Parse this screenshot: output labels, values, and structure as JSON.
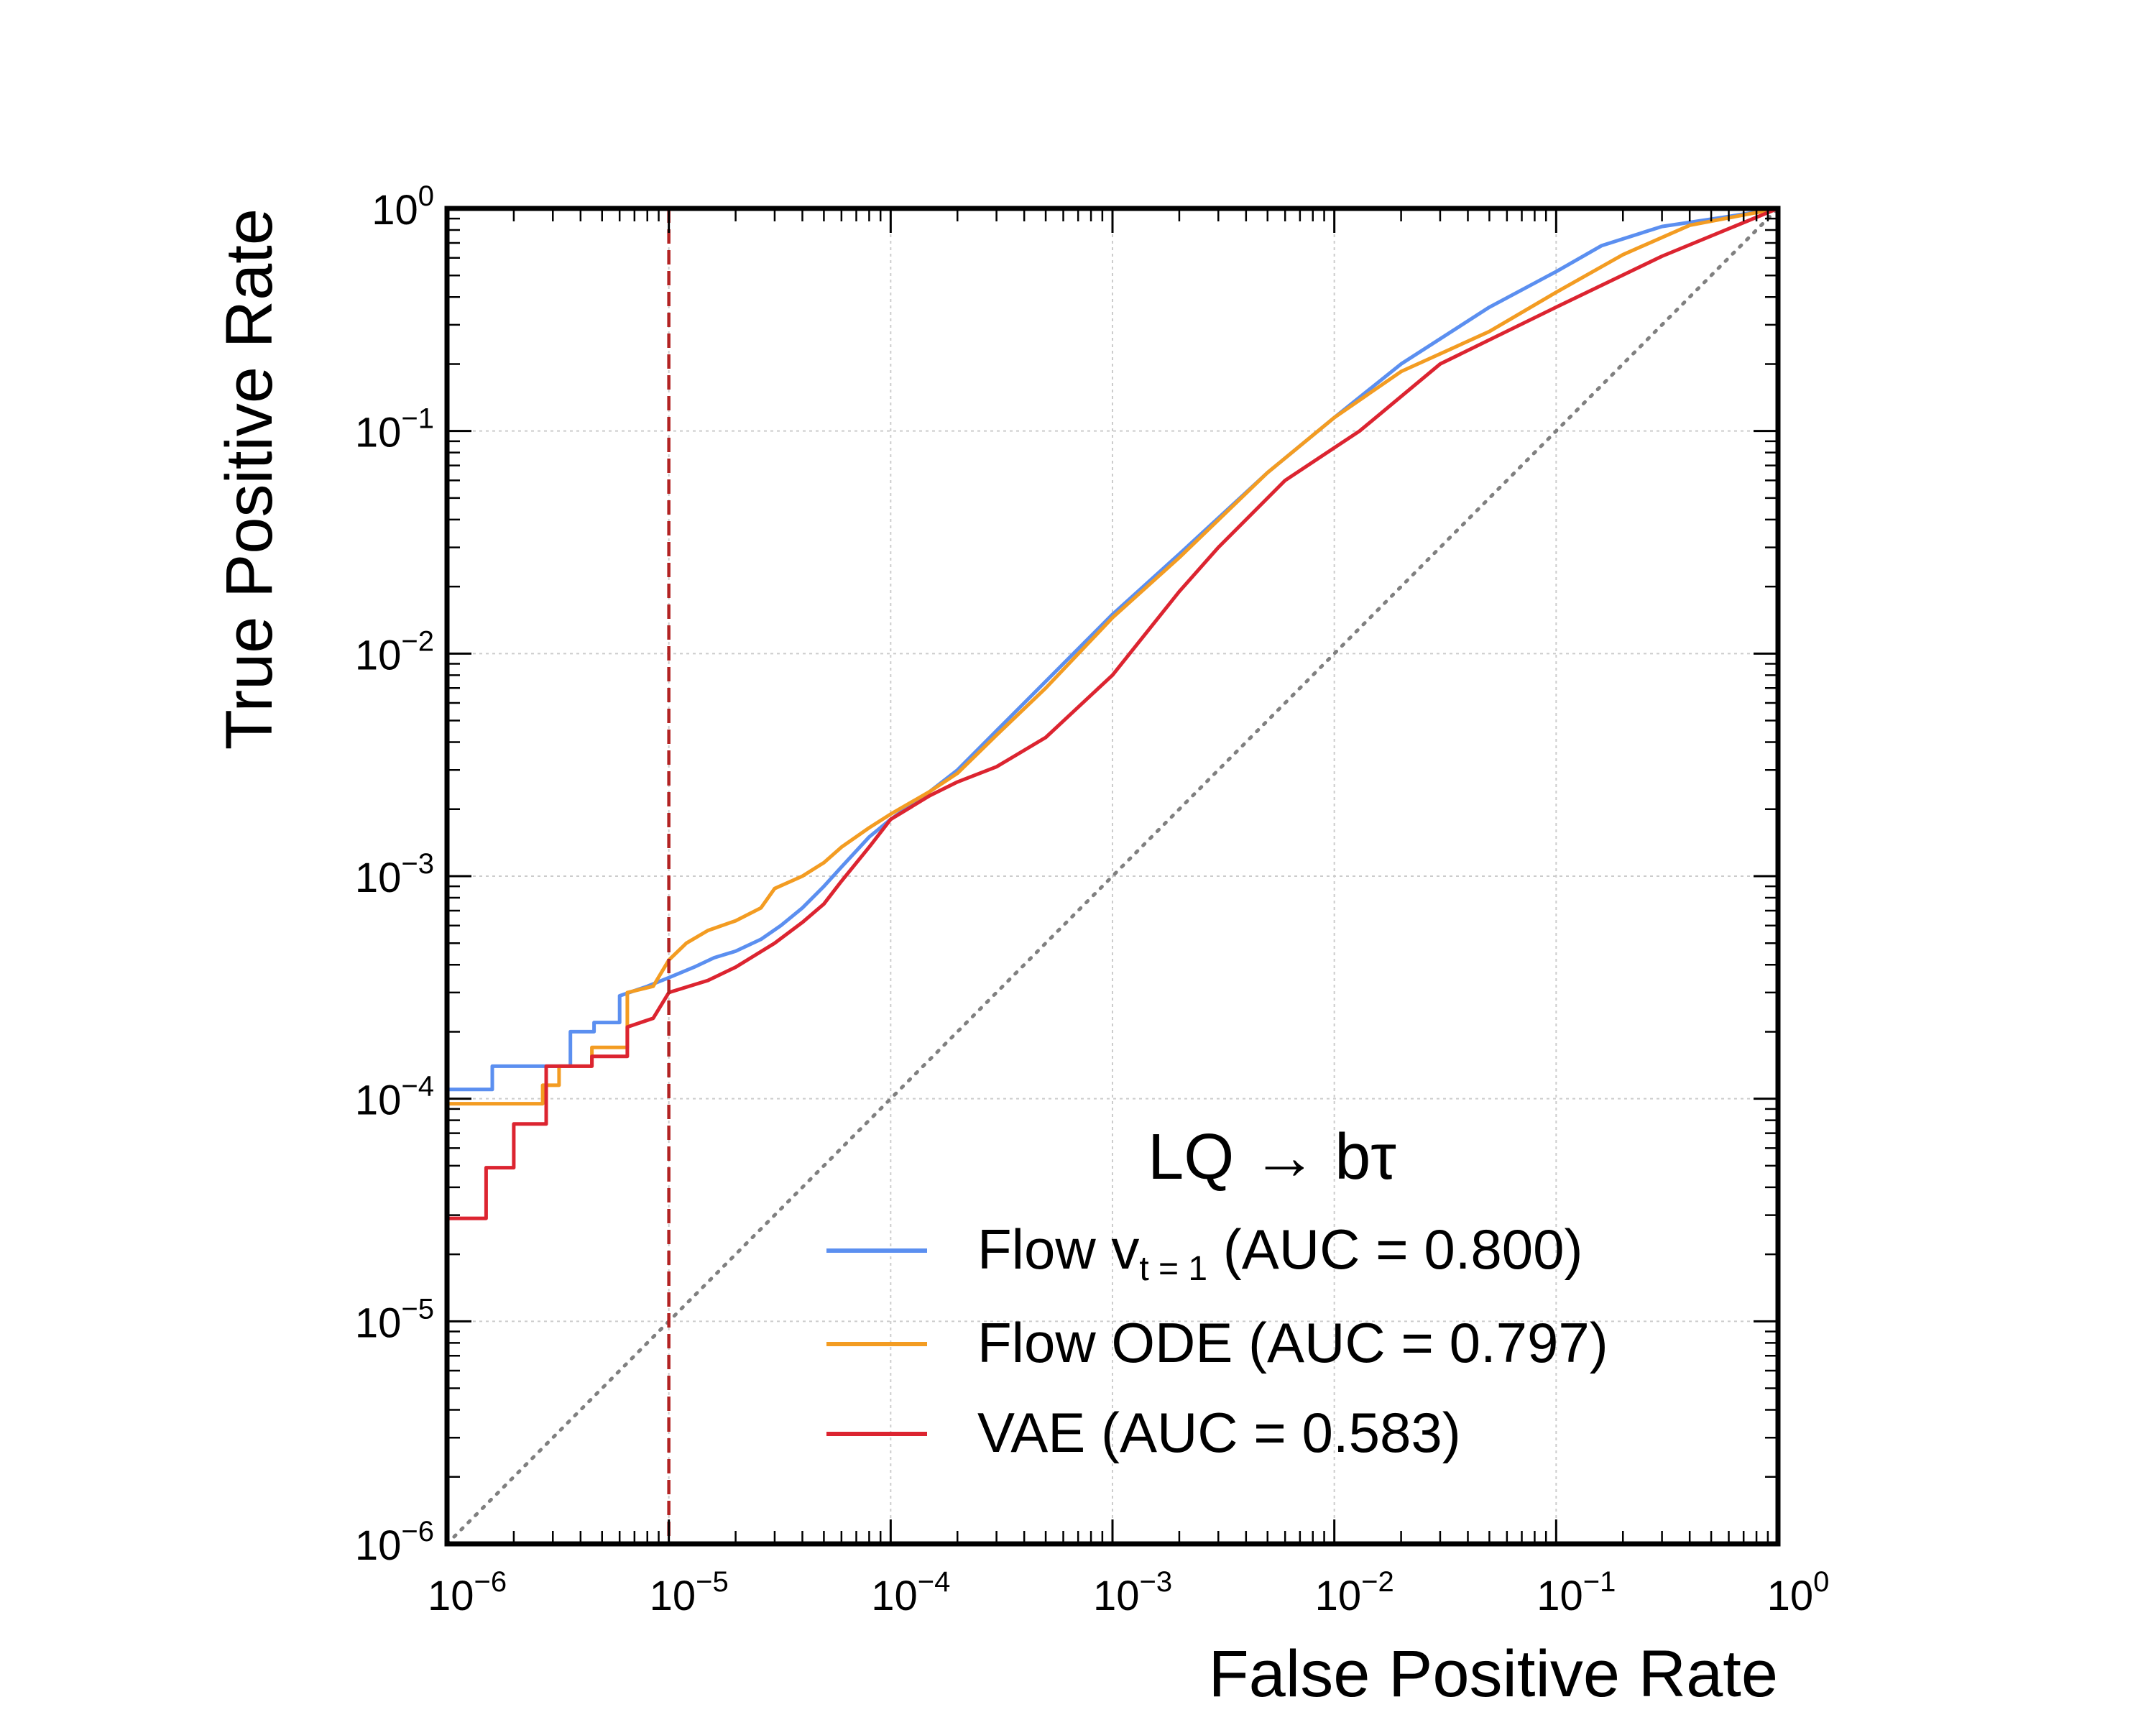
{
  "chart_data": {
    "type": "line",
    "xscale": "log",
    "yscale": "log",
    "xlabel": "False Positive Rate",
    "ylabel": "True Positive Rate",
    "xlim": [
      1e-06,
      1
    ],
    "ylim": [
      1e-06,
      1
    ],
    "grid": true,
    "x_ticks": [
      {
        "base": "10",
        "exp": "−6"
      },
      {
        "base": "10",
        "exp": "−5"
      },
      {
        "base": "10",
        "exp": "−4"
      },
      {
        "base": "10",
        "exp": "−3"
      },
      {
        "base": "10",
        "exp": "−2"
      },
      {
        "base": "10",
        "exp": "−1"
      },
      {
        "base": "10",
        "exp": "0"
      }
    ],
    "y_ticks": [
      {
        "base": "10",
        "exp": "−6"
      },
      {
        "base": "10",
        "exp": "−5"
      },
      {
        "base": "10",
        "exp": "−4"
      },
      {
        "base": "10",
        "exp": "−3"
      },
      {
        "base": "10",
        "exp": "−2"
      },
      {
        "base": "10",
        "exp": "−1"
      },
      {
        "base": "10",
        "exp": "0"
      }
    ],
    "legend_title": "LQ → bτ",
    "legend_placement": "lower-right",
    "reference_line": {
      "x": 1e-05,
      "color": "#b22222",
      "style": "dashed"
    },
    "diagonal": {
      "color": "#808080",
      "style": "dotted"
    },
    "series": [
      {
        "name": "Flow v",
        "name_sub": "t = 1",
        "name_suffix": " (AUC = 0.800)",
        "color": "#5b8ff0",
        "points": [
          [
            1e-06,
            0.00011
          ],
          [
            1.6e-06,
            0.00011
          ],
          [
            1.6e-06,
            0.00014
          ],
          [
            2.6e-06,
            0.00014
          ],
          [
            2.6e-06,
            0.00014
          ],
          [
            3.6e-06,
            0.00014
          ],
          [
            3.6e-06,
            0.0002
          ],
          [
            4.6e-06,
            0.0002
          ],
          [
            4.6e-06,
            0.00022
          ],
          [
            6e-06,
            0.00022
          ],
          [
            6e-06,
            0.00029
          ],
          [
            8e-06,
            0.00032
          ],
          [
            1e-05,
            0.00035
          ],
          [
            1.3e-05,
            0.00039
          ],
          [
            1.6e-05,
            0.00043
          ],
          [
            2e-05,
            0.00046
          ],
          [
            2.6e-05,
            0.00052
          ],
          [
            3.2e-05,
            0.0006
          ],
          [
            4e-05,
            0.00072
          ],
          [
            5e-05,
            0.0009
          ],
          [
            6e-05,
            0.0011
          ],
          [
            8e-05,
            0.0015
          ],
          [
            0.0001,
            0.0018
          ],
          [
            0.00015,
            0.0024
          ],
          [
            0.0002,
            0.003
          ],
          [
            0.0003,
            0.0045
          ],
          [
            0.0005,
            0.0075
          ],
          [
            0.001,
            0.015
          ],
          [
            0.002,
            0.028
          ],
          [
            0.005,
            0.065
          ],
          [
            0.01,
            0.115
          ],
          [
            0.02,
            0.2
          ],
          [
            0.05,
            0.36
          ],
          [
            0.1,
            0.52
          ],
          [
            0.16,
            0.68
          ],
          [
            0.3,
            0.83
          ],
          [
            0.6,
            0.92
          ],
          [
            1,
            1
          ]
        ]
      },
      {
        "name": "Flow ODE",
        "name_sub": "",
        "name_suffix": " (AUC = 0.797)",
        "color": "#f39c22",
        "points": [
          [
            1e-06,
            9.5e-05
          ],
          [
            2.7e-06,
            9.5e-05
          ],
          [
            2.7e-06,
            0.000115
          ],
          [
            3.2e-06,
            0.000115
          ],
          [
            3.2e-06,
            0.00014
          ],
          [
            4.5e-06,
            0.00014
          ],
          [
            4.5e-06,
            0.00017
          ],
          [
            6.5e-06,
            0.00017
          ],
          [
            6.5e-06,
            0.0003
          ],
          [
            8.5e-06,
            0.00032
          ],
          [
            1e-05,
            0.00042
          ],
          [
            1.2e-05,
            0.0005
          ],
          [
            1.5e-05,
            0.00057
          ],
          [
            2e-05,
            0.00063
          ],
          [
            2.6e-05,
            0.00072
          ],
          [
            3e-05,
            0.00088
          ],
          [
            4e-05,
            0.001
          ],
          [
            5e-05,
            0.00115
          ],
          [
            6e-05,
            0.00135
          ],
          [
            8e-05,
            0.00165
          ],
          [
            0.0001,
            0.0019
          ],
          [
            0.00015,
            0.0024
          ],
          [
            0.0002,
            0.0029
          ],
          [
            0.0003,
            0.0043
          ],
          [
            0.0005,
            0.007
          ],
          [
            0.001,
            0.0145
          ],
          [
            0.002,
            0.027
          ],
          [
            0.005,
            0.065
          ],
          [
            0.01,
            0.115
          ],
          [
            0.02,
            0.185
          ],
          [
            0.05,
            0.28
          ],
          [
            0.1,
            0.42
          ],
          [
            0.2,
            0.62
          ],
          [
            0.4,
            0.84
          ],
          [
            1,
            1
          ]
        ]
      },
      {
        "name": "VAE",
        "name_sub": "",
        "name_suffix": " (AUC = 0.583)",
        "color": "#dc2430",
        "points": [
          [
            1e-06,
            2.9e-05
          ],
          [
            1.5e-06,
            2.9e-05
          ],
          [
            1.5e-06,
            4.9e-05
          ],
          [
            2e-06,
            4.9e-05
          ],
          [
            2e-06,
            7.7e-05
          ],
          [
            2.8e-06,
            7.7e-05
          ],
          [
            2.8e-06,
            0.00014
          ],
          [
            4.5e-06,
            0.00014
          ],
          [
            4.5e-06,
            0.000155
          ],
          [
            6.5e-06,
            0.000155
          ],
          [
            6.5e-06,
            0.00021
          ],
          [
            8.5e-06,
            0.00023
          ],
          [
            1e-05,
            0.0003
          ],
          [
            1.5e-05,
            0.00034
          ],
          [
            2e-05,
            0.00039
          ],
          [
            3e-05,
            0.0005
          ],
          [
            4e-05,
            0.00062
          ],
          [
            5e-05,
            0.00075
          ],
          [
            6e-05,
            0.00095
          ],
          [
            8e-05,
            0.00135
          ],
          [
            0.0001,
            0.0018
          ],
          [
            0.00015,
            0.0023
          ],
          [
            0.0002,
            0.00265
          ],
          [
            0.0003,
            0.0031
          ],
          [
            0.0005,
            0.0042
          ],
          [
            0.001,
            0.008
          ],
          [
            0.002,
            0.019
          ],
          [
            0.003,
            0.03
          ],
          [
            0.006,
            0.06
          ],
          [
            0.013,
            0.1
          ],
          [
            0.03,
            0.2
          ],
          [
            0.1,
            0.36
          ],
          [
            0.3,
            0.61
          ],
          [
            1,
            1
          ]
        ]
      }
    ]
  }
}
